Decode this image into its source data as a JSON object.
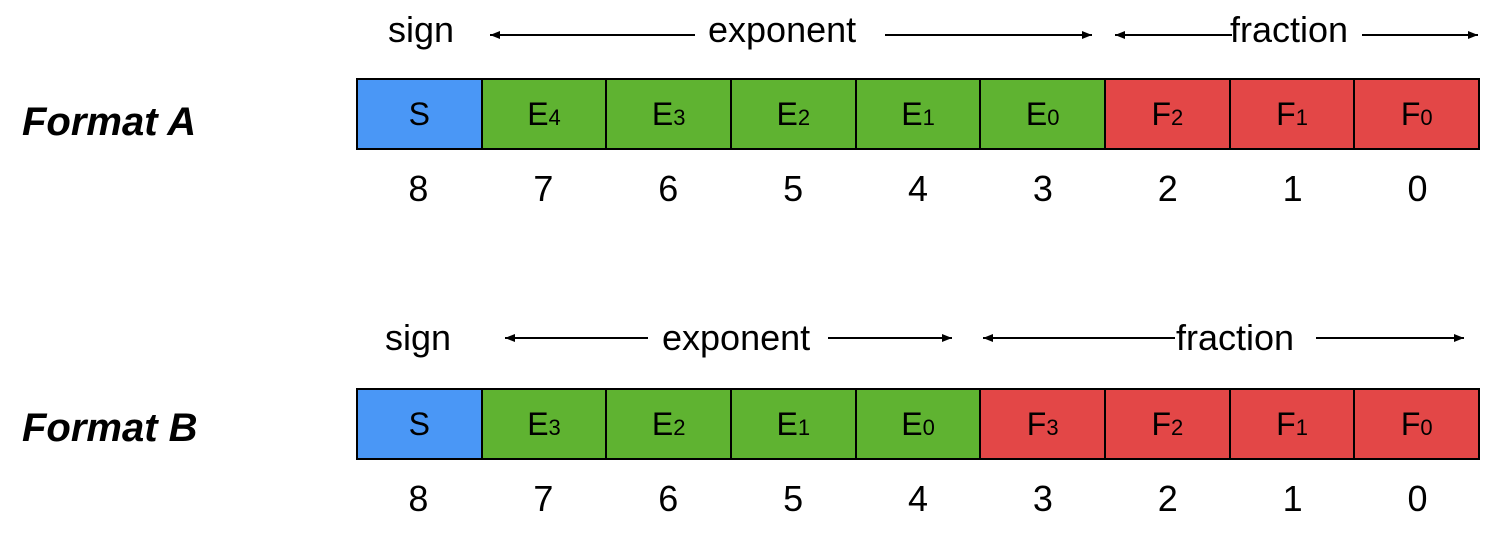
{
  "formats": [
    {
      "label": "Format A",
      "headers": {
        "sign": "sign",
        "exponent": "exponent",
        "fraction": "fraction"
      },
      "cells": [
        {
          "letter": "S",
          "sub": "",
          "field": "sign"
        },
        {
          "letter": "E",
          "sub": "4",
          "field": "exponent"
        },
        {
          "letter": "E",
          "sub": "3",
          "field": "exponent"
        },
        {
          "letter": "E",
          "sub": "2",
          "field": "exponent"
        },
        {
          "letter": "E",
          "sub": "1",
          "field": "exponent"
        },
        {
          "letter": "E",
          "sub": "0",
          "field": "exponent"
        },
        {
          "letter": "F",
          "sub": "2",
          "field": "fraction"
        },
        {
          "letter": "F",
          "sub": "1",
          "field": "fraction"
        },
        {
          "letter": "F",
          "sub": "0",
          "field": "fraction"
        }
      ],
      "bit_positions": [
        "8",
        "7",
        "6",
        "5",
        "4",
        "3",
        "2",
        "1",
        "0"
      ]
    },
    {
      "label": "Format B",
      "headers": {
        "sign": "sign",
        "exponent": "exponent",
        "fraction": "fraction"
      },
      "cells": [
        {
          "letter": "S",
          "sub": "",
          "field": "sign"
        },
        {
          "letter": "E",
          "sub": "3",
          "field": "exponent"
        },
        {
          "letter": "E",
          "sub": "2",
          "field": "exponent"
        },
        {
          "letter": "E",
          "sub": "1",
          "field": "exponent"
        },
        {
          "letter": "E",
          "sub": "0",
          "field": "exponent"
        },
        {
          "letter": "F",
          "sub": "3",
          "field": "fraction"
        },
        {
          "letter": "F",
          "sub": "2",
          "field": "fraction"
        },
        {
          "letter": "F",
          "sub": "1",
          "field": "fraction"
        },
        {
          "letter": "F",
          "sub": "0",
          "field": "fraction"
        }
      ],
      "bit_positions": [
        "8",
        "7",
        "6",
        "5",
        "4",
        "3",
        "2",
        "1",
        "0"
      ]
    }
  ],
  "colors": {
    "sign": "#4a97f6",
    "exponent": "#5fb331",
    "fraction": "#e34747"
  }
}
